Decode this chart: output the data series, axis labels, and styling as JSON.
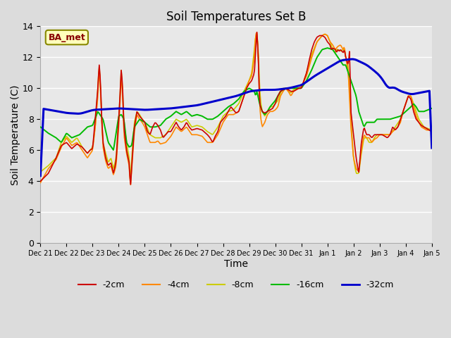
{
  "title": "Soil Temperatures Set B",
  "xlabel": "Time",
  "ylabel": "Soil Temperature (C)",
  "annotation": "BA_met",
  "ylim": [
    0,
    14
  ],
  "series_colors": {
    "-2cm": "#cc0000",
    "-4cm": "#ff8800",
    "-8cm": "#cccc00",
    "-16cm": "#00bb00",
    "-32cm": "#0000cc"
  },
  "tick_labels": [
    "Dec 21",
    "Dec 22",
    "Dec 23",
    "Dec 24",
    "Dec 25",
    "Dec 26",
    "Dec 27",
    "Dec 28",
    "Dec 29",
    "Dec 30",
    "Dec 31",
    "Jan 1",
    "Jan 2",
    "Jan 3",
    "Jan 4",
    "Jan 5"
  ],
  "figsize": [
    6.4,
    4.8
  ],
  "dpi": 100,
  "bg_color": "#dcdcdc",
  "plot_bg": "#e8e8e8"
}
